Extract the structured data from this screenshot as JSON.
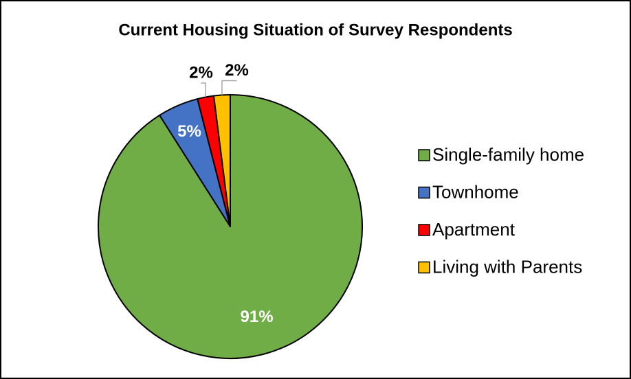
{
  "chart_data": {
    "type": "pie",
    "title": "Current Housing Situation of Survey Respondents",
    "categories": [
      "Single-family home",
      "Townhome",
      "Apartment",
      "Living with Parents"
    ],
    "values": [
      91,
      5,
      2,
      2
    ],
    "value_labels": [
      "91%",
      "5%",
      "2%",
      "2%"
    ],
    "colors": [
      "#70ad47",
      "#4472c4",
      "#ff0000",
      "#ffc000"
    ],
    "legend": "right"
  }
}
